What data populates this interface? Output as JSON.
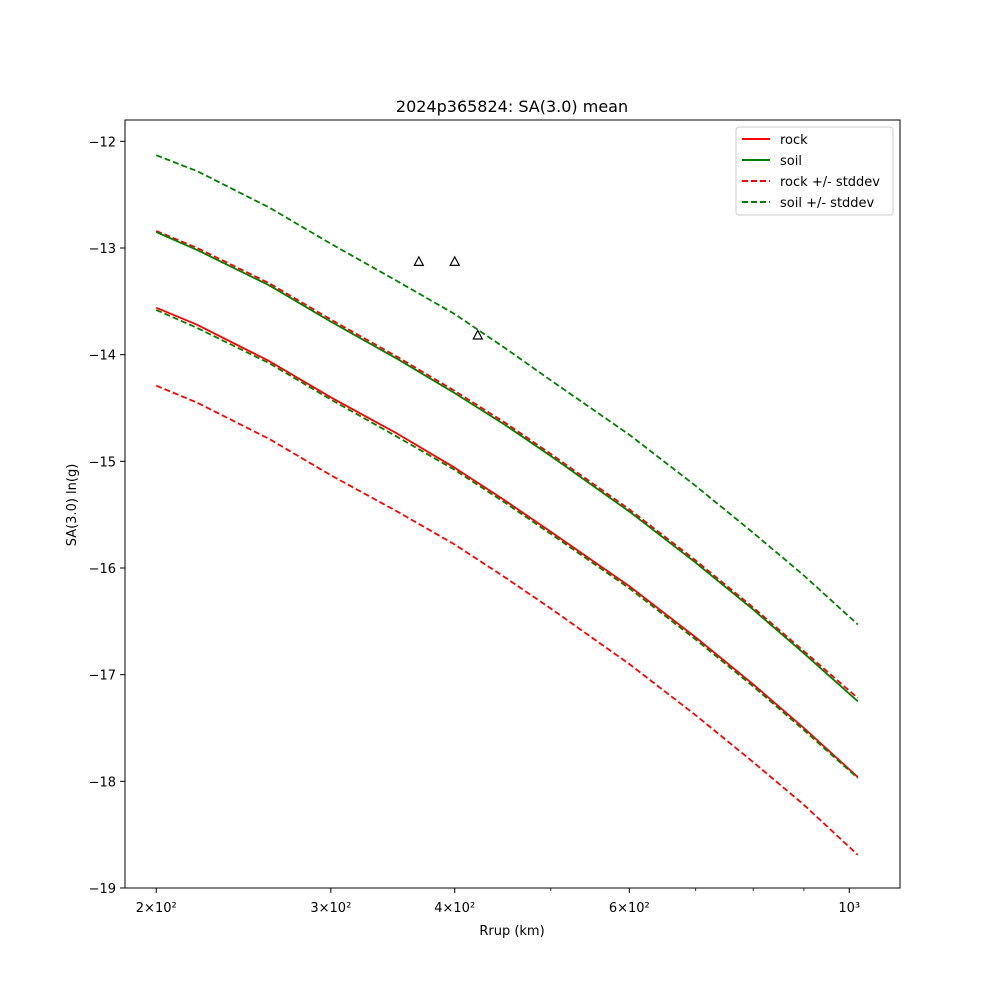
{
  "chart_data": {
    "type": "line",
    "title": "2024p365824: SA(3.0) mean",
    "xlabel": "Rrup (km)",
    "ylabel": "SA(3.0) ln(g)",
    "xscale": "log",
    "xlim": [
      186,
      1125
    ],
    "ylim": [
      -19,
      -11.8
    ],
    "yticks": [
      -12,
      -13,
      -14,
      -15,
      -16,
      -17,
      -18,
      -19
    ],
    "xticks_major": [
      {
        "value": 200,
        "label": "2×10²"
      },
      {
        "value": 300,
        "label": "3×10²"
      },
      {
        "value": 400,
        "label": "4×10²"
      },
      {
        "value": 600,
        "label": "6×10²"
      },
      {
        "value": 1000,
        "label": "10³"
      }
    ],
    "xticks_minor": [
      500,
      700,
      800,
      900
    ],
    "grid": false,
    "legend_position": "top-right",
    "x": [
      200,
      220,
      260,
      300,
      350,
      400,
      450,
      500,
      600,
      700,
      800,
      900,
      1020
    ],
    "series": [
      {
        "name": "rock",
        "color": "#ff0000",
        "style": "solid",
        "values": [
          -13.56,
          -13.72,
          -14.06,
          -14.4,
          -14.74,
          -15.06,
          -15.37,
          -15.66,
          -16.17,
          -16.65,
          -17.09,
          -17.5,
          -17.96
        ]
      },
      {
        "name": "rock +/- stddev",
        "color": "#ff0000",
        "style": "dashed",
        "legend": true,
        "values": [
          -12.84,
          -13.0,
          -13.33,
          -13.67,
          -14.02,
          -14.34,
          -14.64,
          -14.93,
          -15.45,
          -15.93,
          -16.37,
          -16.78,
          -17.22
        ]
      },
      {
        "name": "rock +/- stddev",
        "color": "#ff0000",
        "style": "dashed",
        "legend": false,
        "values": [
          -14.29,
          -14.45,
          -14.79,
          -15.13,
          -15.47,
          -15.78,
          -16.09,
          -16.38,
          -16.9,
          -17.38,
          -17.82,
          -18.22,
          -18.69
        ]
      },
      {
        "name": "soil",
        "color": "#008000",
        "style": "solid",
        "values": [
          -12.85,
          -13.02,
          -13.35,
          -13.69,
          -14.04,
          -14.36,
          -14.66,
          -14.95,
          -15.47,
          -15.95,
          -16.39,
          -16.8,
          -17.25
        ]
      },
      {
        "name": "soil +/- stddev",
        "color": "#008000",
        "style": "dashed",
        "legend": true,
        "values": [
          -12.13,
          -12.28,
          -12.62,
          -12.96,
          -13.31,
          -13.62,
          -13.94,
          -14.24,
          -14.75,
          -15.23,
          -15.67,
          -16.07,
          -16.53
        ]
      },
      {
        "name": "soil +/- stddev",
        "color": "#008000",
        "style": "dashed",
        "legend": false,
        "values": [
          -13.58,
          -13.75,
          -14.08,
          -14.42,
          -14.77,
          -15.08,
          -15.39,
          -15.68,
          -16.19,
          -16.67,
          -17.11,
          -17.52,
          -17.97
        ]
      }
    ],
    "observations": {
      "marker": "triangle-open",
      "color": "#000000",
      "points": [
        {
          "x": 368,
          "y": -13.13
        },
        {
          "x": 400,
          "y": -13.13
        },
        {
          "x": 422,
          "y": -13.82
        }
      ]
    }
  }
}
